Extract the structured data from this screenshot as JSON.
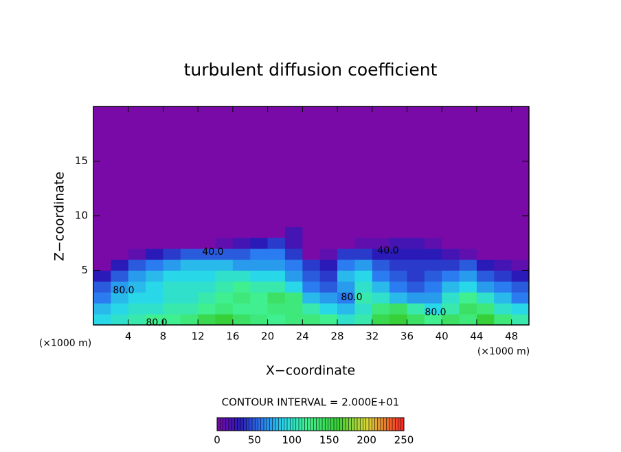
{
  "chart_data": {
    "type": "heatmap",
    "title": "turbulent diffusion coefficient",
    "x_label": "X−coordinate",
    "y_label": "Z−coordinate",
    "x_unit": "(×1000 m)",
    "y_unit": "(×1000 m)",
    "contour_interval": "CONTOUR INTERVAL = 2.000E+01",
    "contour_labels": [
      "40.0",
      "40.0",
      "80.0",
      "80.0",
      "80.0",
      "80.0"
    ],
    "xlim": [
      0,
      50
    ],
    "ylim": [
      0,
      20
    ],
    "xticks": [
      4,
      8,
      12,
      16,
      20,
      24,
      28,
      32,
      36,
      40,
      44,
      48
    ],
    "yticks": [
      5,
      10,
      15
    ],
    "x_edges": [
      0,
      2,
      4,
      6,
      8,
      10,
      12,
      14,
      16,
      18,
      20,
      22,
      24,
      26,
      28,
      30,
      32,
      34,
      36,
      38,
      40,
      42,
      44,
      46,
      48,
      50
    ],
    "y_edges": [
      0,
      1,
      2,
      3,
      4,
      5,
      6,
      7,
      8,
      9,
      10,
      20
    ],
    "values": [
      [
        90,
        100,
        110,
        120,
        120,
        130,
        150,
        160,
        140,
        130,
        120,
        130,
        130,
        120,
        100,
        110,
        150,
        160,
        140,
        120,
        140,
        130,
        160,
        130,
        110
      ],
      [
        80,
        90,
        100,
        100,
        110,
        110,
        120,
        130,
        120,
        120,
        130,
        130,
        110,
        90,
        80,
        100,
        130,
        140,
        110,
        90,
        110,
        140,
        130,
        100,
        90
      ],
      [
        60,
        80,
        90,
        90,
        100,
        100,
        110,
        120,
        130,
        120,
        140,
        130,
        80,
        70,
        60,
        110,
        100,
        80,
        70,
        70,
        100,
        120,
        100,
        80,
        60
      ],
      [
        50,
        70,
        80,
        90,
        100,
        100,
        100,
        110,
        120,
        110,
        110,
        90,
        60,
        50,
        70,
        100,
        80,
        60,
        50,
        60,
        80,
        90,
        70,
        60,
        50
      ],
      [
        30,
        50,
        70,
        80,
        90,
        90,
        90,
        100,
        100,
        90,
        90,
        70,
        50,
        40,
        80,
        90,
        60,
        50,
        40,
        50,
        60,
        70,
        50,
        40,
        30
      ],
      [
        0,
        30,
        50,
        60,
        70,
        80,
        80,
        80,
        70,
        70,
        70,
        60,
        40,
        30,
        60,
        70,
        50,
        40,
        40,
        40,
        40,
        50,
        30,
        20,
        10
      ],
      [
        0,
        0,
        10,
        30,
        40,
        50,
        50,
        50,
        50,
        60,
        60,
        40,
        0,
        10,
        40,
        40,
        30,
        30,
        30,
        30,
        20,
        10,
        0,
        0,
        0
      ],
      [
        0,
        0,
        0,
        0,
        0,
        0,
        0,
        10,
        20,
        30,
        40,
        20,
        0,
        0,
        0,
        10,
        10,
        20,
        20,
        10,
        0,
        0,
        0,
        0,
        0
      ],
      [
        0,
        0,
        0,
        0,
        0,
        0,
        0,
        0,
        0,
        0,
        0,
        20,
        0,
        0,
        0,
        0,
        0,
        0,
        0,
        0,
        0,
        0,
        0,
        0,
        0
      ],
      [
        0,
        0,
        0,
        0,
        0,
        0,
        0,
        0,
        0,
        0,
        0,
        0,
        0,
        0,
        0,
        0,
        0,
        0,
        0,
        0,
        0,
        0,
        0,
        0,
        0
      ],
      [
        0,
        0,
        0,
        0,
        0,
        0,
        0,
        0,
        0,
        0,
        0,
        0,
        0,
        0,
        0,
        0,
        0,
        0,
        0,
        0,
        0,
        0,
        0,
        0,
        0
      ]
    ],
    "colorbar_lim": [
      0,
      250
    ],
    "colorbar_ticks": [
      0,
      50,
      100,
      150,
      200,
      250
    ],
    "colormap": [
      [
        0,
        "#7a0aa8"
      ],
      [
        30,
        "#2a1ab8"
      ],
      [
        60,
        "#2a7cf0"
      ],
      [
        90,
        "#28d8e8"
      ],
      [
        120,
        "#40f090"
      ],
      [
        160,
        "#38d038"
      ],
      [
        200,
        "#d8d838"
      ],
      [
        250,
        "#ff2020"
      ]
    ]
  }
}
